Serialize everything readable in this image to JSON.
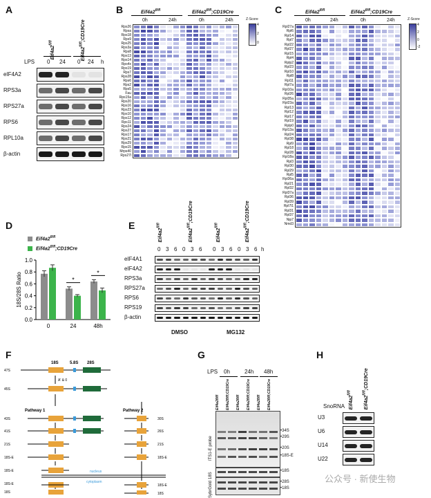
{
  "panelA": {
    "letter": "A",
    "col1": "Eif4a2",
    "col1_sup": "fl/fl",
    "col2": "Eif4a2",
    "col2_sup": "fl/fl",
    "col2_suffix": ";CD19Cre",
    "lps": "LPS",
    "times": [
      "0",
      "24",
      "0",
      "24"
    ],
    "h": "h",
    "rows": [
      "eIF4A2",
      "RPS3a",
      "RPS27a",
      "RPS6",
      "RPL10a",
      "β-actin"
    ]
  },
  "panelB": {
    "letter": "B",
    "group1": "Eif4a2",
    "group1_sup": "fl/fl",
    "group2": "Eif4a2",
    "group2_sup": "fl/fl",
    "group2_suffix": ";CD19Cre",
    "times": [
      "0h",
      "24h",
      "0h",
      "24h"
    ],
    "zscore": "Z-Score",
    "scale": [
      "4",
      "2",
      "0"
    ],
    "genes": [
      "Rps26",
      "Rpsa",
      "Rps18",
      "Rps9",
      "Rps25",
      "Rps3a",
      "Rps8",
      "Rps13",
      "Rps14",
      "Rps4x",
      "Rps19",
      "Rps7",
      "Rps28",
      "Rps6",
      "Rps2",
      "Rps5",
      "Fau",
      "Rps15a",
      "Rps20",
      "Rps16",
      "Rps23",
      "Rps10",
      "Rps12",
      "Rps11",
      "Rps24",
      "Rps27",
      "Rps17",
      "Rps21",
      "Rps29",
      "Rps15",
      "Mrps40",
      "Rps27l"
    ]
  },
  "panelC": {
    "letter": "C",
    "group1": "Eif4a2",
    "group1_sup": "fl/fl",
    "group2": "Eif4a2",
    "group2_sup": "fl/fl",
    "group2_suffix": ";CD19Cre",
    "times": [
      "0h",
      "24h",
      "0h",
      "24h"
    ],
    "zscore": "Z-Score",
    "scale": [
      "4",
      "2",
      "0",
      "-2"
    ],
    "genes": [
      "Rpl27a",
      "Rpl6",
      "Rpl14",
      "Rpl7",
      "Rpl22",
      "Rpl27",
      "Rpl15",
      "Rpl4",
      "Rplp2",
      "Rpl23",
      "Rpl10",
      "Rpl8",
      "Rpl11",
      "Rpl7a",
      "Rpl10a",
      "Rpl26",
      "Rpl35a",
      "Rpl23a",
      "Rpl13",
      "Rpl12",
      "Rpl17",
      "Rpl19",
      "Rplp0",
      "Rpl13a",
      "Rpl24",
      "Rpl38",
      "Rpl9",
      "Rpl18",
      "Rpl28",
      "Rpl18a",
      "Rpl3",
      "Rpl30",
      "Rpl29",
      "Rpl5",
      "Rpl36a",
      "Rpl21",
      "Rpl32",
      "Rpl37a",
      "Rpl36",
      "Rpl39",
      "Rpl7l1",
      "Rpl31",
      "Rpl37",
      "Nip7",
      "Nmd3"
    ]
  },
  "panelD": {
    "letter": "D",
    "legend": [
      {
        "name": "Eif4a2",
        "sup": "fl/fl",
        "suffix": "",
        "color": "#8c8c8c"
      },
      {
        "name": "Eif4a2",
        "sup": "fl/fl",
        "suffix": ";CD19Cre",
        "color": "#3cb44b"
      }
    ],
    "ylabel": "18S/28S Ratio",
    "yticks": [
      "0.0",
      "0.2",
      "0.4",
      "0.6",
      "0.8",
      "1.0"
    ],
    "sig": [
      "*",
      "*"
    ]
  },
  "chart_data": {
    "type": "bar",
    "categories": [
      "0",
      "24",
      "48h"
    ],
    "series": [
      {
        "name": "Eif4a2fl/fl",
        "values": [
          0.77,
          0.52,
          0.64
        ],
        "errors": [
          0.05,
          0.03,
          0.03
        ]
      },
      {
        "name": "Eif4a2fl/fl;CD19Cre",
        "values": [
          0.87,
          0.4,
          0.49
        ],
        "errors": [
          0.05,
          0.02,
          0.04
        ]
      }
    ],
    "ylabel": "18S/28S Ratio",
    "ylim": [
      0,
      1.0
    ],
    "colors": [
      "#8c8c8c",
      "#3cb44b"
    ]
  },
  "panelE": {
    "letter": "E",
    "group1": "Eif4a2",
    "group1_sup": "fl/fl",
    "group2": "Eif4a2",
    "group2_sup": "fl/fl",
    "group2_suffix": ";CD19Cre",
    "times": [
      "0",
      "3",
      "6",
      "0",
      "3",
      "6"
    ],
    "h": "h",
    "rows": [
      "eIF4A1",
      "eIF4A2",
      "RPS3a",
      "RPS27a",
      "RPS6",
      "RPS19",
      "β-actin"
    ],
    "treat1": "DMSO",
    "treat2": "MG132"
  },
  "panelF": {
    "letter": "F",
    "labels_top": [
      "18S",
      "5.8S",
      "28S"
    ],
    "arrow1": "A' & 0",
    "pathway1": "Pathway 1",
    "pathway2": "Pathway 2",
    "nucleus": "nucleus",
    "cytoplasm": "cytoplasm",
    "left_species": [
      "47S",
      "45S",
      "43S",
      "41S",
      "21S",
      "18S-E",
      "18S-E",
      "18S"
    ],
    "right_species": [
      "30S",
      "26S",
      "21S",
      "18S-E",
      "18S-E",
      "18S"
    ]
  },
  "panelG": {
    "letter": "G",
    "lps": "LPS",
    "times": [
      "0h",
      "24h",
      "48h"
    ],
    "lanes": [
      "Eif4a2fl/fl",
      "Eif4a2fl/fl;CD19Cre",
      "Eif4a2fl/fl",
      "Eif4a2fl/fl;CD19Cre",
      "Eif4a2fl/fl",
      "Eif4a2fl/fl;CD19Cre"
    ],
    "probe1": "ITS1-E probe",
    "probe2": "18S",
    "probe3": "SybrGold",
    "bands": [
      "34S",
      "29S",
      "20S",
      "18S-E",
      "18S",
      "28S",
      "18S"
    ]
  },
  "panelH": {
    "letter": "H",
    "col1": "Eif4a2",
    "col1_sup": "fl/fl",
    "col2": "Eif4a2",
    "col2_sup": "fl/fl",
    "col2_suffix": ";CD19Cre",
    "snorna": "SnoRNA",
    "rows": [
      "U3",
      "U6",
      "U14",
      "U22"
    ]
  },
  "watermark": "公众号 · 新使生物",
  "colors": {
    "heat_dark": "#3b3f9e",
    "heat_mid": "#8f95d4",
    "heat_light": "#dfe2f5",
    "gray_bar": "#8c8c8c",
    "green_bar": "#3cb44b",
    "orange_block": "#e8a33a",
    "green_block": "#1f6b3a",
    "blue_block": "#3a9ad9"
  }
}
